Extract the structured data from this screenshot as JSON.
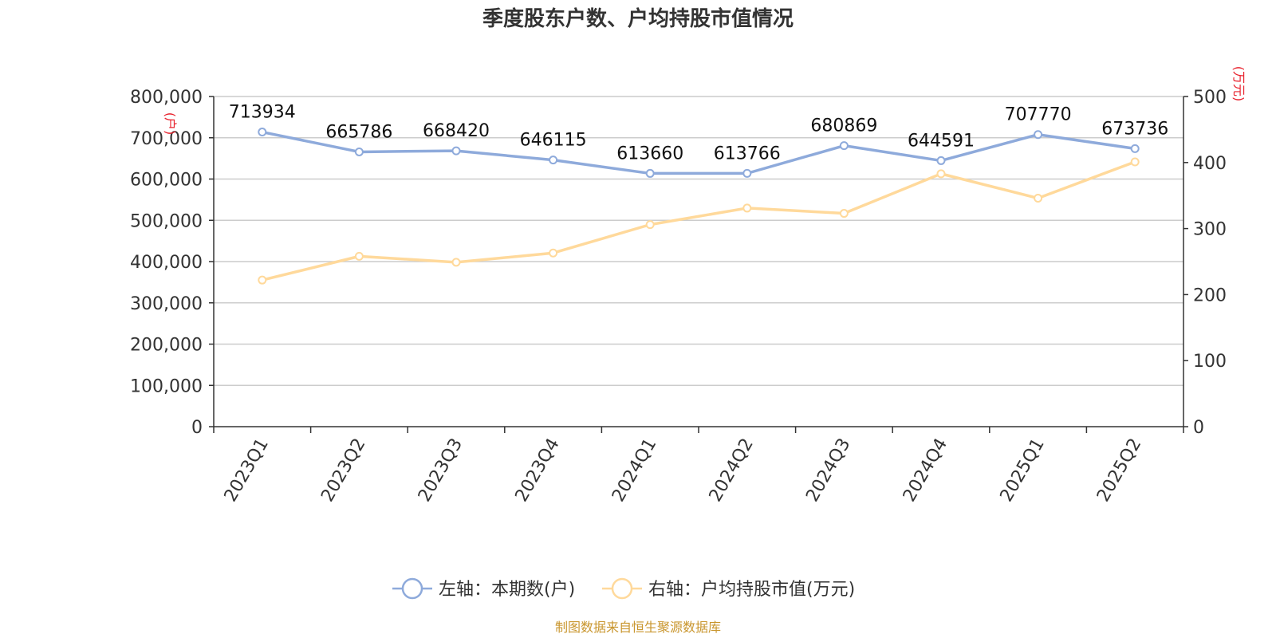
{
  "chart_data": {
    "type": "line",
    "title": "季度股东户数、户均持股市值情况",
    "categories": [
      "2023Q1",
      "2023Q2",
      "2023Q3",
      "2023Q4",
      "2024Q1",
      "2024Q2",
      "2024Q3",
      "2024Q4",
      "2025Q1",
      "2025Q2"
    ],
    "series": [
      {
        "name": "左轴：本期数(户)",
        "axis": "left",
        "color": "#8eaadb",
        "values": [
          713934,
          665786,
          668420,
          646115,
          613660,
          613766,
          680869,
          644591,
          707770,
          673736
        ],
        "show_labels": true
      },
      {
        "name": "右轴：户均持股市值(万元)",
        "axis": "right",
        "color": "#ffd99b",
        "values": [
          222,
          258,
          249,
          263,
          306,
          331,
          323,
          383,
          346,
          401
        ],
        "show_labels": false
      }
    ],
    "y_left": {
      "label": "(户)",
      "ylim": [
        0,
        800000
      ],
      "ticks": [
        "0",
        "100,000",
        "200,000",
        "300,000",
        "400,000",
        "500,000",
        "600,000",
        "700,000",
        "800,000"
      ]
    },
    "y_right": {
      "label": "(万元)",
      "ylim": [
        0,
        500
      ],
      "ticks": [
        "0",
        "100",
        "200",
        "300",
        "400",
        "500"
      ]
    },
    "grid": true,
    "legend": "bottom-center",
    "source": "制图数据来自恒生聚源数据库"
  }
}
